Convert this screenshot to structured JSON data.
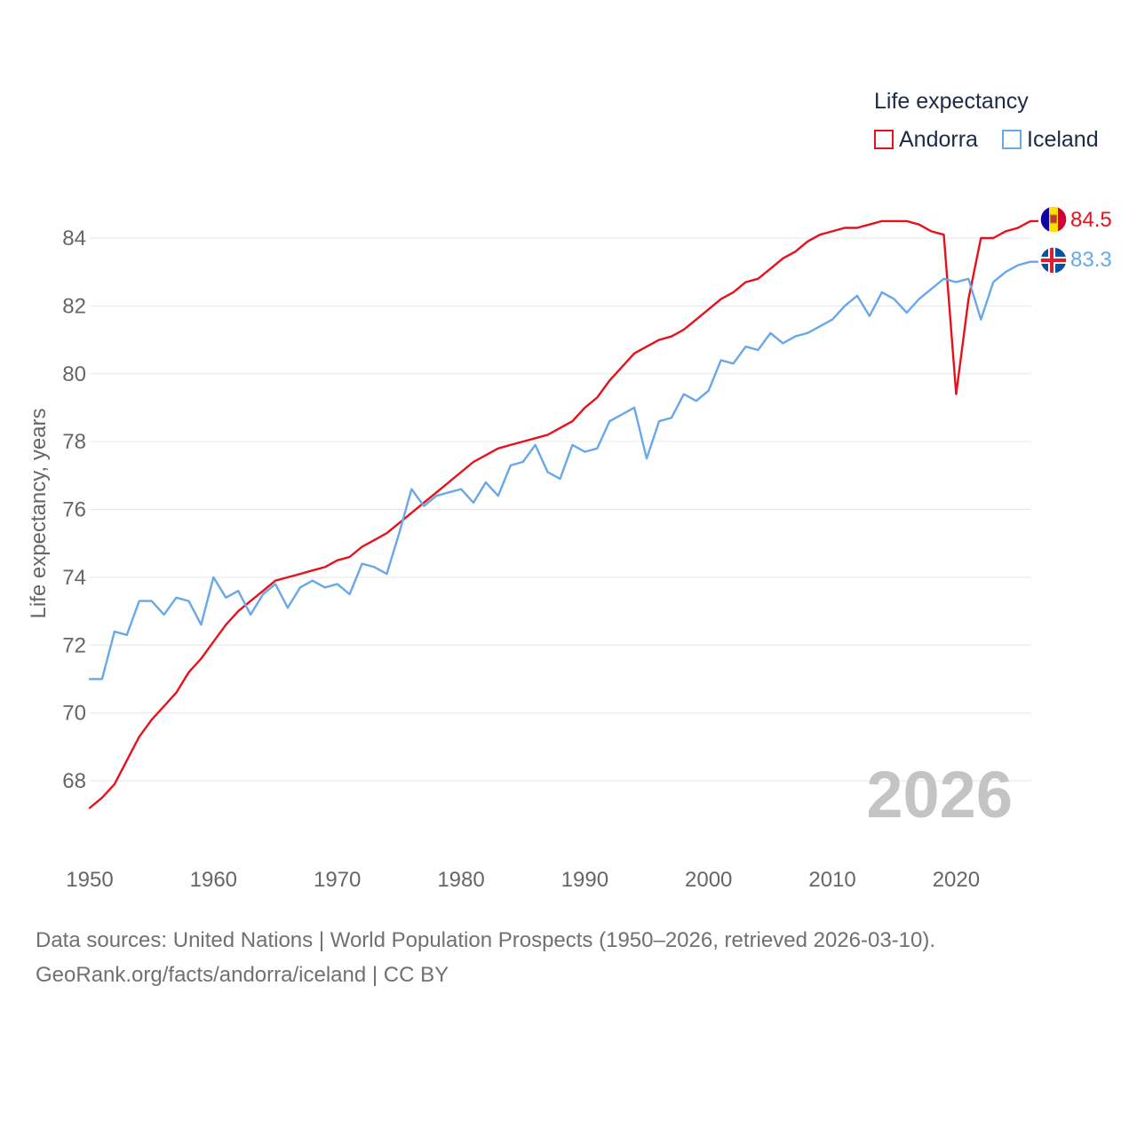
{
  "legend": {
    "title": "Life expectancy",
    "items": [
      {
        "label": "Andorra",
        "color": "#e8101a"
      },
      {
        "label": "Iceland",
        "color": "#68a8e8"
      }
    ]
  },
  "year_watermark": "2026",
  "footer": {
    "line1": "Data sources: United Nations | World Population Prospects (1950–2026, retrieved 2026-03-10).",
    "line2": "GeoRank.org/facts/andorra/iceland | CC BY"
  },
  "chart_data": {
    "type": "line",
    "title": "Life expectancy",
    "xlabel": "",
    "ylabel": "Life expectancy, years",
    "xlim": [
      1950,
      2026
    ],
    "ylim": [
      66.5,
      85.5
    ],
    "x_ticks": [
      1950,
      1960,
      1970,
      1980,
      1990,
      2000,
      2010,
      2020
    ],
    "y_ticks": [
      68,
      70,
      72,
      74,
      76,
      78,
      80,
      82,
      84
    ],
    "grid": true,
    "x_start": 1950,
    "series": [
      {
        "name": "Andorra",
        "color": "#e8101a",
        "end_label": "84.5",
        "values": [
          67.2,
          67.5,
          67.9,
          68.6,
          69.3,
          69.8,
          70.2,
          70.6,
          71.2,
          71.6,
          72.1,
          72.6,
          73.0,
          73.3,
          73.6,
          73.9,
          74.0,
          74.1,
          74.2,
          74.3,
          74.5,
          74.6,
          74.9,
          75.1,
          75.3,
          75.6,
          75.9,
          76.2,
          76.5,
          76.8,
          77.1,
          77.4,
          77.6,
          77.8,
          77.9,
          78.0,
          78.1,
          78.2,
          78.4,
          78.6,
          79.0,
          79.3,
          79.8,
          80.2,
          80.6,
          80.8,
          81.0,
          81.1,
          81.3,
          81.6,
          81.9,
          82.2,
          82.4,
          82.7,
          82.8,
          83.1,
          83.4,
          83.6,
          83.9,
          84.1,
          84.2,
          84.3,
          84.3,
          84.4,
          84.5,
          84.5,
          84.5,
          84.4,
          84.2,
          84.1,
          79.4,
          82.2,
          84.0,
          84.0,
          84.2,
          84.3,
          84.5
        ]
      },
      {
        "name": "Iceland",
        "color": "#68a8e8",
        "end_label": "83.3",
        "values": [
          71.0,
          71.0,
          72.4,
          72.3,
          73.3,
          73.3,
          72.9,
          73.4,
          73.3,
          72.6,
          74.0,
          73.4,
          73.6,
          72.9,
          73.5,
          73.8,
          73.1,
          73.7,
          73.9,
          73.7,
          73.8,
          73.5,
          74.4,
          74.3,
          74.1,
          75.3,
          76.6,
          76.1,
          76.4,
          76.5,
          76.6,
          76.2,
          76.8,
          76.4,
          77.3,
          77.4,
          77.9,
          77.1,
          76.9,
          77.9,
          77.7,
          77.8,
          78.6,
          78.8,
          79.0,
          77.5,
          78.6,
          78.7,
          79.4,
          79.2,
          79.5,
          80.4,
          80.3,
          80.8,
          80.7,
          81.2,
          80.9,
          81.1,
          81.2,
          81.4,
          81.6,
          82.0,
          82.3,
          81.7,
          82.4,
          82.2,
          81.8,
          82.2,
          82.5,
          82.8,
          82.7,
          82.8,
          81.6,
          82.7,
          83.0,
          83.2,
          83.3
        ]
      }
    ]
  }
}
